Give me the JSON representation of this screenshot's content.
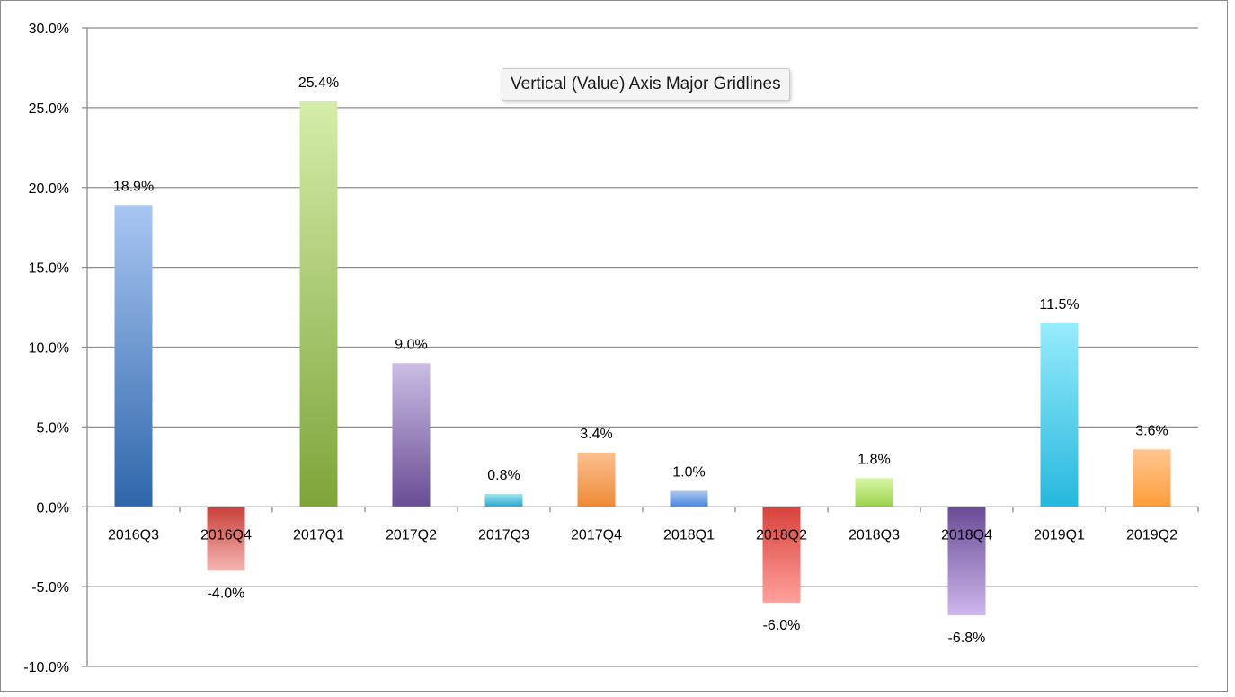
{
  "tooltip": {
    "text": "Vertical (Value) Axis Major Gridlines"
  },
  "chart_data": {
    "type": "bar",
    "title": "",
    "xlabel": "",
    "ylabel": "",
    "ylim": [
      -10,
      30
    ],
    "y_ticks": [
      30,
      25,
      20,
      15,
      10,
      5,
      0,
      -5,
      -10
    ],
    "y_tick_labels": [
      "30.0%",
      "25.0%",
      "20.0%",
      "15.0%",
      "10.0%",
      "5.0%",
      "0.0%",
      "-5.0%",
      "-10.0%"
    ],
    "grid": true,
    "legend": "none",
    "categories": [
      "2016Q3",
      "2016Q4",
      "2017Q1",
      "2017Q2",
      "2017Q3",
      "2017Q4",
      "2018Q1",
      "2018Q2",
      "2018Q3",
      "2018Q4",
      "2019Q1",
      "2019Q2"
    ],
    "values": [
      18.9,
      -4.0,
      25.4,
      9.0,
      0.8,
      3.4,
      1.0,
      -6.0,
      1.8,
      -6.8,
      11.5,
      3.6
    ],
    "data_labels": [
      "18.9%",
      "-4.0%",
      "25.4%",
      "9.0%",
      "0.8%",
      "3.4%",
      "1.0%",
      "-6.0%",
      "1.8%",
      "-6.8%",
      "11.5%",
      "3.6%"
    ],
    "bar_colors": [
      [
        "#a9c6f2",
        "#2f66aa"
      ],
      [
        "#c9403a",
        "#f4b6b2"
      ],
      [
        "#d4edaa",
        "#7ea43a"
      ],
      [
        "#cbbde4",
        "#694d94"
      ],
      [
        "#9fe3f2",
        "#2ba9cd"
      ],
      [
        "#fcc08f",
        "#ee8a36"
      ],
      [
        "#acc8f2",
        "#4b86dd"
      ],
      [
        "#d8423c",
        "#ffa19b"
      ],
      [
        "#d8f5a6",
        "#9bd24b"
      ],
      [
        "#6a4b97",
        "#cdb7ec"
      ],
      [
        "#97ecfc",
        "#26b7dd"
      ],
      [
        "#ffc690",
        "#ff9d3a"
      ]
    ],
    "axis_color": "#8c8c8c",
    "gridline_color": "#8c8c8c"
  }
}
